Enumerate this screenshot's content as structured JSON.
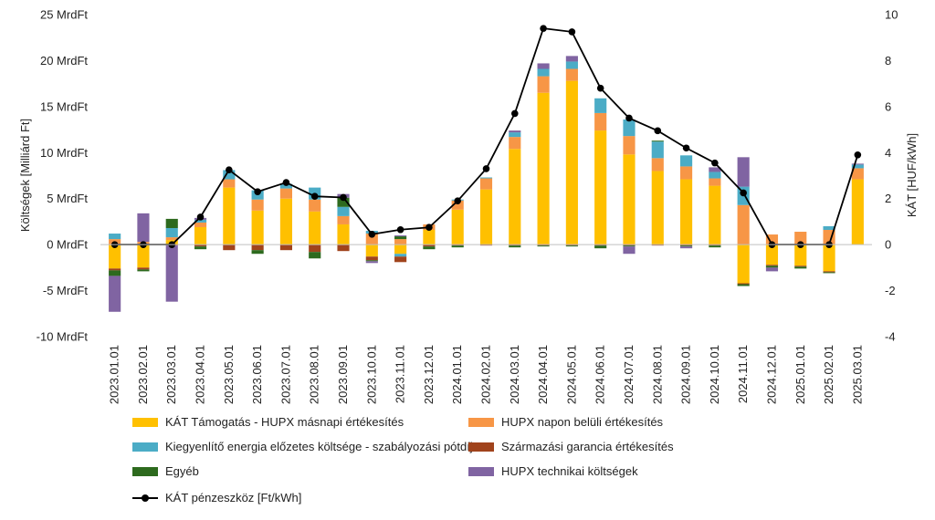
{
  "chart_data": {
    "type": "bar",
    "stacked": true,
    "categories": [
      "2023.01.01",
      "2023.02.01",
      "2023.03.01",
      "2023.04.01",
      "2023.05.01",
      "2023.06.01",
      "2023.07.01",
      "2023.08.01",
      "2023.09.01",
      "2023.10.01",
      "2023.11.01",
      "2023.12.01",
      "2024.01.01",
      "2024.02.01",
      "2024.03.01",
      "2024.04.01",
      "2024.05.01",
      "2024.06.01",
      "2024.07.01",
      "2024.08.01",
      "2024.09.01",
      "2024.10.01",
      "2024.11.01",
      "2024.12.01",
      "2025.01.01",
      "2025.02.01",
      "2025.03.01"
    ],
    "ylabel": "Költségek [Milliárd Ft]",
    "y2label": "KÁT [HUF/kWh]",
    "ylim": [
      -10,
      25
    ],
    "y2lim": [
      -4,
      10
    ],
    "yticks": [
      -10,
      -5,
      0,
      5,
      10,
      15,
      20,
      25
    ],
    "ytick_labels": [
      "-10 MrdFt",
      "-5 MrdFt",
      "0 MrdFt",
      "5 MrdFt",
      "10 MrdFt",
      "15 MrdFt",
      "20 MrdFt",
      "25 MrdFt"
    ],
    "y2ticks": [
      -4,
      -2,
      0,
      2,
      4,
      6,
      8,
      10
    ],
    "y2tick_labels": [
      "-4",
      "-2",
      "0",
      "2",
      "4",
      "6",
      "8",
      "10"
    ],
    "legend_position": "bottom",
    "series": [
      {
        "name": "KÁT Támogatás - HUPX másnapi értékesítés",
        "color": "#FFC000",
        "values": [
          -2.6,
          -2.5,
          0.5,
          1.9,
          6.2,
          3.7,
          5.0,
          3.6,
          2.2,
          -1.3,
          -1.0,
          1.6,
          3.8,
          6.0,
          10.4,
          16.5,
          17.8,
          12.4,
          9.8,
          8.0,
          7.1,
          6.4,
          -4.2,
          -2.2,
          -2.3,
          -2.9,
          7.1
        ]
      },
      {
        "name": "HUPX napon belüli értékesítés",
        "color": "#F79646",
        "values": [
          0.6,
          0.3,
          0.3,
          0.5,
          0.9,
          1.2,
          1.1,
          1.3,
          0.9,
          1.2,
          0.6,
          0.6,
          1.0,
          1.2,
          1.3,
          1.8,
          1.3,
          1.9,
          2.0,
          1.4,
          1.4,
          0.8,
          4.3,
          1.1,
          1.4,
          1.6,
          1.2
        ]
      },
      {
        "name": "Kiegyenlítő energia előzetes költsége - szabályozási pótdíj",
        "color": "#4BACC6",
        "values": [
          0.6,
          0.0,
          1.0,
          0.3,
          1.0,
          1.0,
          0.5,
          1.3,
          1.0,
          0.3,
          -0.3,
          0.0,
          0.1,
          0.1,
          0.5,
          0.8,
          0.8,
          1.6,
          1.8,
          1.8,
          1.2,
          0.7,
          2.0,
          0.0,
          0.0,
          0.4,
          0.4
        ]
      },
      {
        "name": "Származási garancia értékesítés",
        "color": "#A0431C",
        "values": [
          -0.2,
          -0.2,
          -0.1,
          -0.2,
          -0.6,
          -0.6,
          -0.6,
          -0.8,
          -0.7,
          -0.4,
          -0.6,
          -0.2,
          -0.1,
          -0.1,
          -0.1,
          -0.1,
          -0.1,
          -0.1,
          -0.1,
          -0.1,
          -0.1,
          -0.1,
          -0.1,
          -0.1,
          -0.1,
          -0.1,
          0.0
        ]
      },
      {
        "name": "Egyéb",
        "color": "#2D6A1E",
        "values": [
          -0.6,
          -0.2,
          1.0,
          -0.3,
          0.0,
          -0.4,
          0.0,
          -0.7,
          1.0,
          -0.1,
          0.3,
          -0.3,
          -0.2,
          0.0,
          -0.2,
          -0.1,
          -0.1,
          -0.3,
          -0.1,
          0.1,
          -0.1,
          -0.2,
          -0.2,
          -0.2,
          -0.2,
          -0.1,
          0.0
        ]
      },
      {
        "name": "HUPX technikai költségek",
        "color": "#8064A2",
        "values": [
          -3.9,
          3.1,
          -6.1,
          0.2,
          0.0,
          0.0,
          0.0,
          0.0,
          0.4,
          -0.2,
          0.1,
          0.0,
          0.0,
          0.0,
          0.2,
          0.6,
          0.6,
          0.0,
          -0.8,
          0.0,
          -0.2,
          0.5,
          3.2,
          -0.4,
          0.0,
          0.0,
          0.1
        ]
      }
    ],
    "line_series": {
      "name": "KÁT pénzeszköz [Ft/kWh]",
      "axis": "right",
      "color": "#000000",
      "values": [
        0.0,
        0.0,
        0.0,
        1.2,
        3.25,
        2.3,
        2.7,
        2.1,
        2.05,
        0.45,
        0.65,
        0.75,
        1.9,
        3.3,
        5.7,
        9.4,
        9.25,
        6.8,
        5.5,
        4.95,
        4.2,
        3.55,
        2.25,
        0.0,
        0.0,
        0.0,
        3.9
      ]
    }
  }
}
